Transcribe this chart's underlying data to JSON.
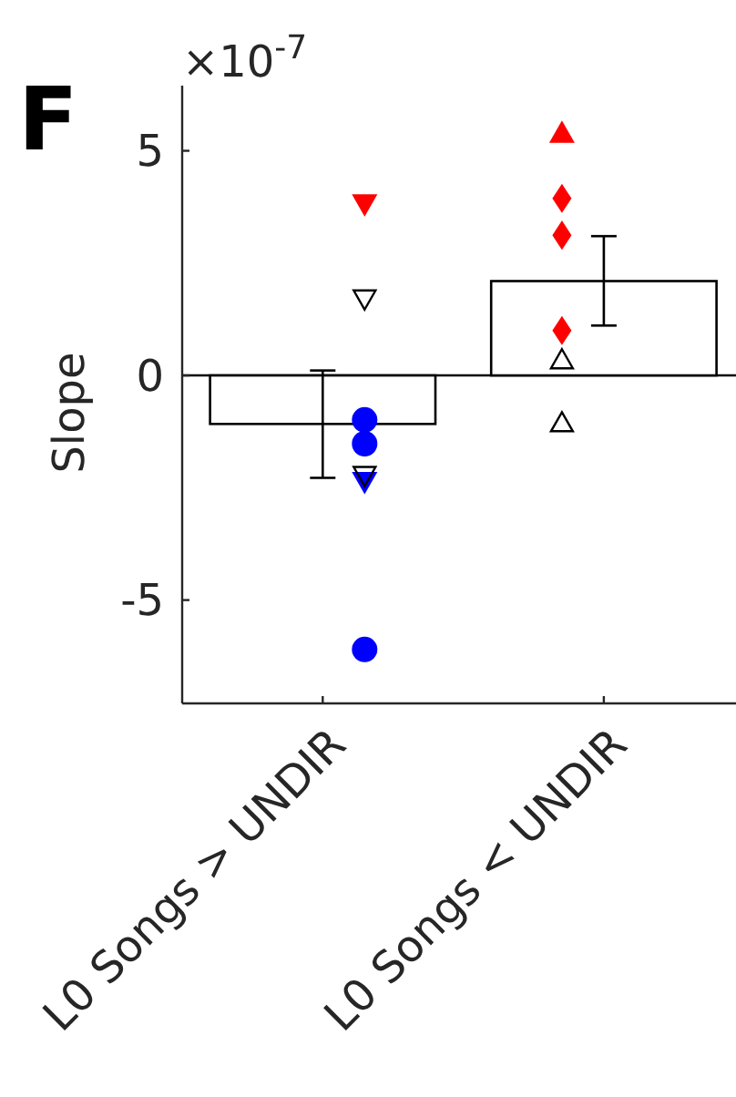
{
  "chart_data": {
    "type": "bar",
    "title": "F",
    "ylabel": "Slope",
    "annotations": [
      "×10$^{-7}$"
    ],
    "categories": [
      "L0 Songs > UNDIR",
      "L0 Songs < UNDIR"
    ],
    "ylim": [
      -7.3,
      6.45
    ],
    "yticks": [
      -5,
      0,
      5
    ],
    "ref_lines": [
      {
        "axis": "y",
        "value": 0,
        "color": "#000000"
      }
    ],
    "series": [
      {
        "color": "#ffffff",
        "values": [
          -1.08,
          2.1
        ],
        "errors": [
          [
            -2.28,
            0.11
          ],
          [
            1.11,
            3.1
          ]
        ]
      },
      {
        "type": "scatter",
        "marker": "triangle-down",
        "color": "#ff0000",
        "x": [
          "L0 Songs > UNDIR"
        ],
        "values": [
          3.82
        ]
      },
      {
        "type": "scatter",
        "marker": "triangle-down",
        "color": "#000000",
        "x": [
          "L0 Songs > UNDIR",
          "L0 Songs > UNDIR"
        ],
        "values": [
          1.71,
          -2.22
        ]
      },
      {
        "type": "scatter",
        "marker": "circle",
        "color": "#0000ff",
        "x": [
          "L0 Songs > UNDIR",
          "L0 Songs > UNDIR",
          "L0 Songs > UNDIR"
        ],
        "values": [
          -0.99,
          -1.52,
          -6.1
        ]
      },
      {
        "type": "scatter",
        "marker": "triangle-down",
        "color": "#0000ff",
        "x": [
          "L0 Songs > UNDIR"
        ],
        "values": [
          -2.36
        ]
      },
      {
        "type": "scatter",
        "marker": "triangle",
        "color": "#ff0000",
        "x": [
          "L0 Songs < UNDIR"
        ],
        "values": [
          5.39
        ]
      },
      {
        "type": "scatter",
        "marker": "diamond",
        "color": "#ff0000",
        "x": [
          "L0 Songs < UNDIR",
          "L0 Songs < UNDIR",
          "L0 Songs < UNDIR"
        ],
        "values": [
          3.94,
          3.12,
          1.0
        ]
      },
      {
        "type": "scatter",
        "marker": "triangle",
        "color": "#000000",
        "x": [
          "L0 Songs < UNDIR",
          "L0 Songs < UNDIR"
        ],
        "values": [
          0.34,
          -1.06
        ]
      }
    ]
  }
}
